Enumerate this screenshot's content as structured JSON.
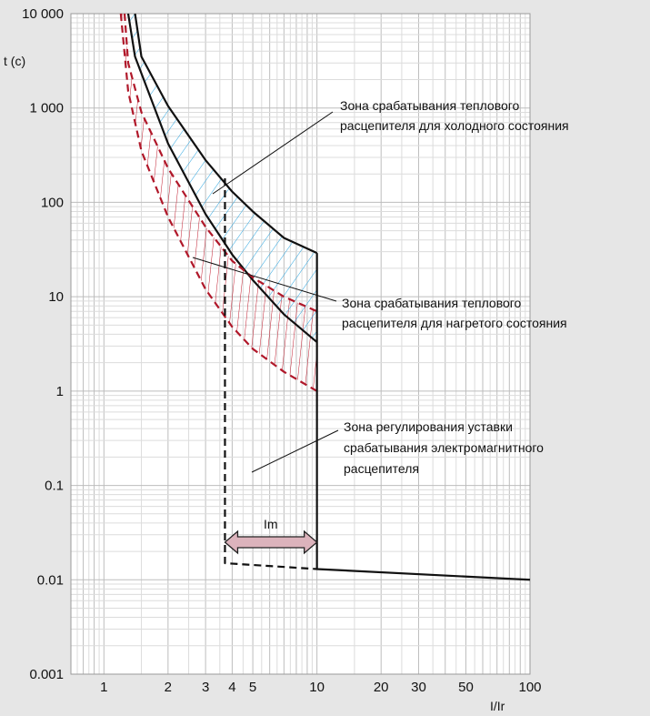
{
  "chart_data": {
    "type": "line",
    "title": "",
    "xlabel": "I/Ir",
    "ylabel": "t (с)",
    "xscale": "log",
    "yscale": "log",
    "xlim": [
      0.7,
      100
    ],
    "ylim": [
      0.001,
      10000
    ],
    "grid": true,
    "x_ticks": [
      {
        "value": 1,
        "label": "1"
      },
      {
        "value": 2,
        "label": "2"
      },
      {
        "value": 3,
        "label": "3"
      },
      {
        "value": 4,
        "label": "4"
      },
      {
        "value": 5,
        "label": "5"
      },
      {
        "value": 10,
        "label": "10"
      },
      {
        "value": 20,
        "label": "20"
      },
      {
        "value": 30,
        "label": "30"
      },
      {
        "value": 50,
        "label": "50"
      },
      {
        "value": 100,
        "label": "100"
      }
    ],
    "y_ticks": [
      {
        "value": 10000,
        "label": "10 000"
      },
      {
        "value": 1000,
        "label": "1 000"
      },
      {
        "value": 100,
        "label": "100"
      },
      {
        "value": 10,
        "label": "10"
      },
      {
        "value": 1,
        "label": "1"
      },
      {
        "value": 0.1,
        "label": "0.1"
      },
      {
        "value": 0.01,
        "label": "0.01"
      },
      {
        "value": 0.001,
        "label": "0.001"
      }
    ],
    "series": [
      {
        "x": [
          1.4,
          1.5,
          2,
          3,
          4,
          5,
          7,
          10
        ],
        "y": [
          10000,
          3500,
          1050,
          280,
          130,
          80,
          42,
          29
        ],
        "color": "#111111",
        "dash": false
      },
      {
        "x": [
          1.3,
          1.4,
          2,
          3,
          4,
          5,
          7,
          10
        ],
        "y": [
          10000,
          3500,
          420,
          75,
          28,
          15,
          6.5,
          3.3
        ],
        "color": "#111111",
        "dash": false
      },
      {
        "x": [
          1.25,
          1.3,
          1.5,
          2,
          3,
          4,
          5,
          7,
          10
        ],
        "y": [
          10000,
          3000,
          900,
          230,
          55,
          24,
          16,
          10,
          7
        ],
        "color": "#b0182a",
        "dash": true
      },
      {
        "x": [
          1.2,
          1.3,
          1.5,
          2,
          3,
          4,
          5,
          7,
          10
        ],
        "y": [
          10000,
          1500,
          350,
          70,
          12,
          4.8,
          2.8,
          1.6,
          1.0
        ],
        "color": "#b0182a",
        "dash": true
      },
      {
        "x": [
          10,
          10,
          100
        ],
        "y": [
          29,
          0.013,
          0.01
        ],
        "color": "#111111",
        "dash": false
      },
      {
        "x": [
          3.7,
          3.7,
          10
        ],
        "y": [
          180,
          0.015,
          0.013
        ],
        "color": "#111111",
        "dash": true
      }
    ],
    "im_arrow": {
      "from": 3.7,
      "to": 10,
      "y": 0.025,
      "label": "Im"
    },
    "annotations": [
      {
        "lines": [
          "Зона срабатывания теплового",
          "расцепителя для холодного состояния"
        ]
      },
      {
        "lines": [
          "Зона срабатывания теплового",
          "расцепителя для нагретого состояния"
        ]
      },
      {
        "lines": [
          "Зона регулирования уставки",
          "срабатывания электромагнитного",
          "расцепителя"
        ]
      }
    ]
  }
}
